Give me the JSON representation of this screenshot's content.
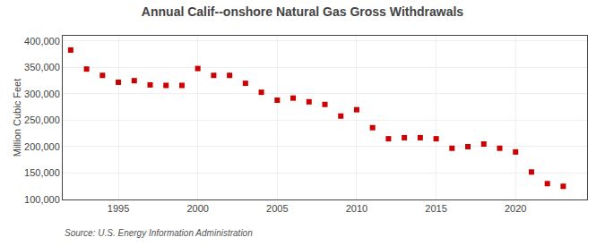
{
  "chart_data": {
    "type": "scatter",
    "title": "Annual Calif--onshore Natural Gas Gross Withdrawals",
    "ylabel": "Million Cubic Feet",
    "annotations": [
      "Source: U.S. Energy Information Administration"
    ],
    "x": [
      1992,
      1993,
      1994,
      1995,
      1996,
      1997,
      1998,
      1999,
      2000,
      2001,
      2002,
      2003,
      2004,
      2005,
      2006,
      2007,
      2008,
      2009,
      2010,
      2011,
      2012,
      2013,
      2014,
      2015,
      2016,
      2017,
      2018,
      2019,
      2020,
      2021,
      2022,
      2023
    ],
    "values": [
      383000,
      347000,
      335000,
      322000,
      325000,
      317000,
      316000,
      316000,
      348000,
      335000,
      335000,
      320000,
      303000,
      288000,
      292000,
      285000,
      280000,
      258000,
      270000,
      236000,
      215000,
      217000,
      217000,
      215000,
      197000,
      200000,
      205000,
      197000,
      190000,
      152000,
      130000,
      125000
    ],
    "color": "#cc0000",
    "marker": "square",
    "xlim": [
      1991.5,
      2024.5
    ],
    "xticks": [
      1995,
      2000,
      2005,
      2010,
      2015,
      2020
    ],
    "ylim": [
      100000,
      410000
    ],
    "yticks": [
      {
        "value": 100000,
        "label": "100,000"
      },
      {
        "value": 150000,
        "label": "150,000"
      },
      {
        "value": 200000,
        "label": "200,000"
      },
      {
        "value": 250000,
        "label": "250,000"
      },
      {
        "value": 300000,
        "label": "300,000"
      },
      {
        "value": 350000,
        "label": "350,000"
      },
      {
        "value": 400000,
        "label": "400,000"
      }
    ],
    "grid": true
  }
}
